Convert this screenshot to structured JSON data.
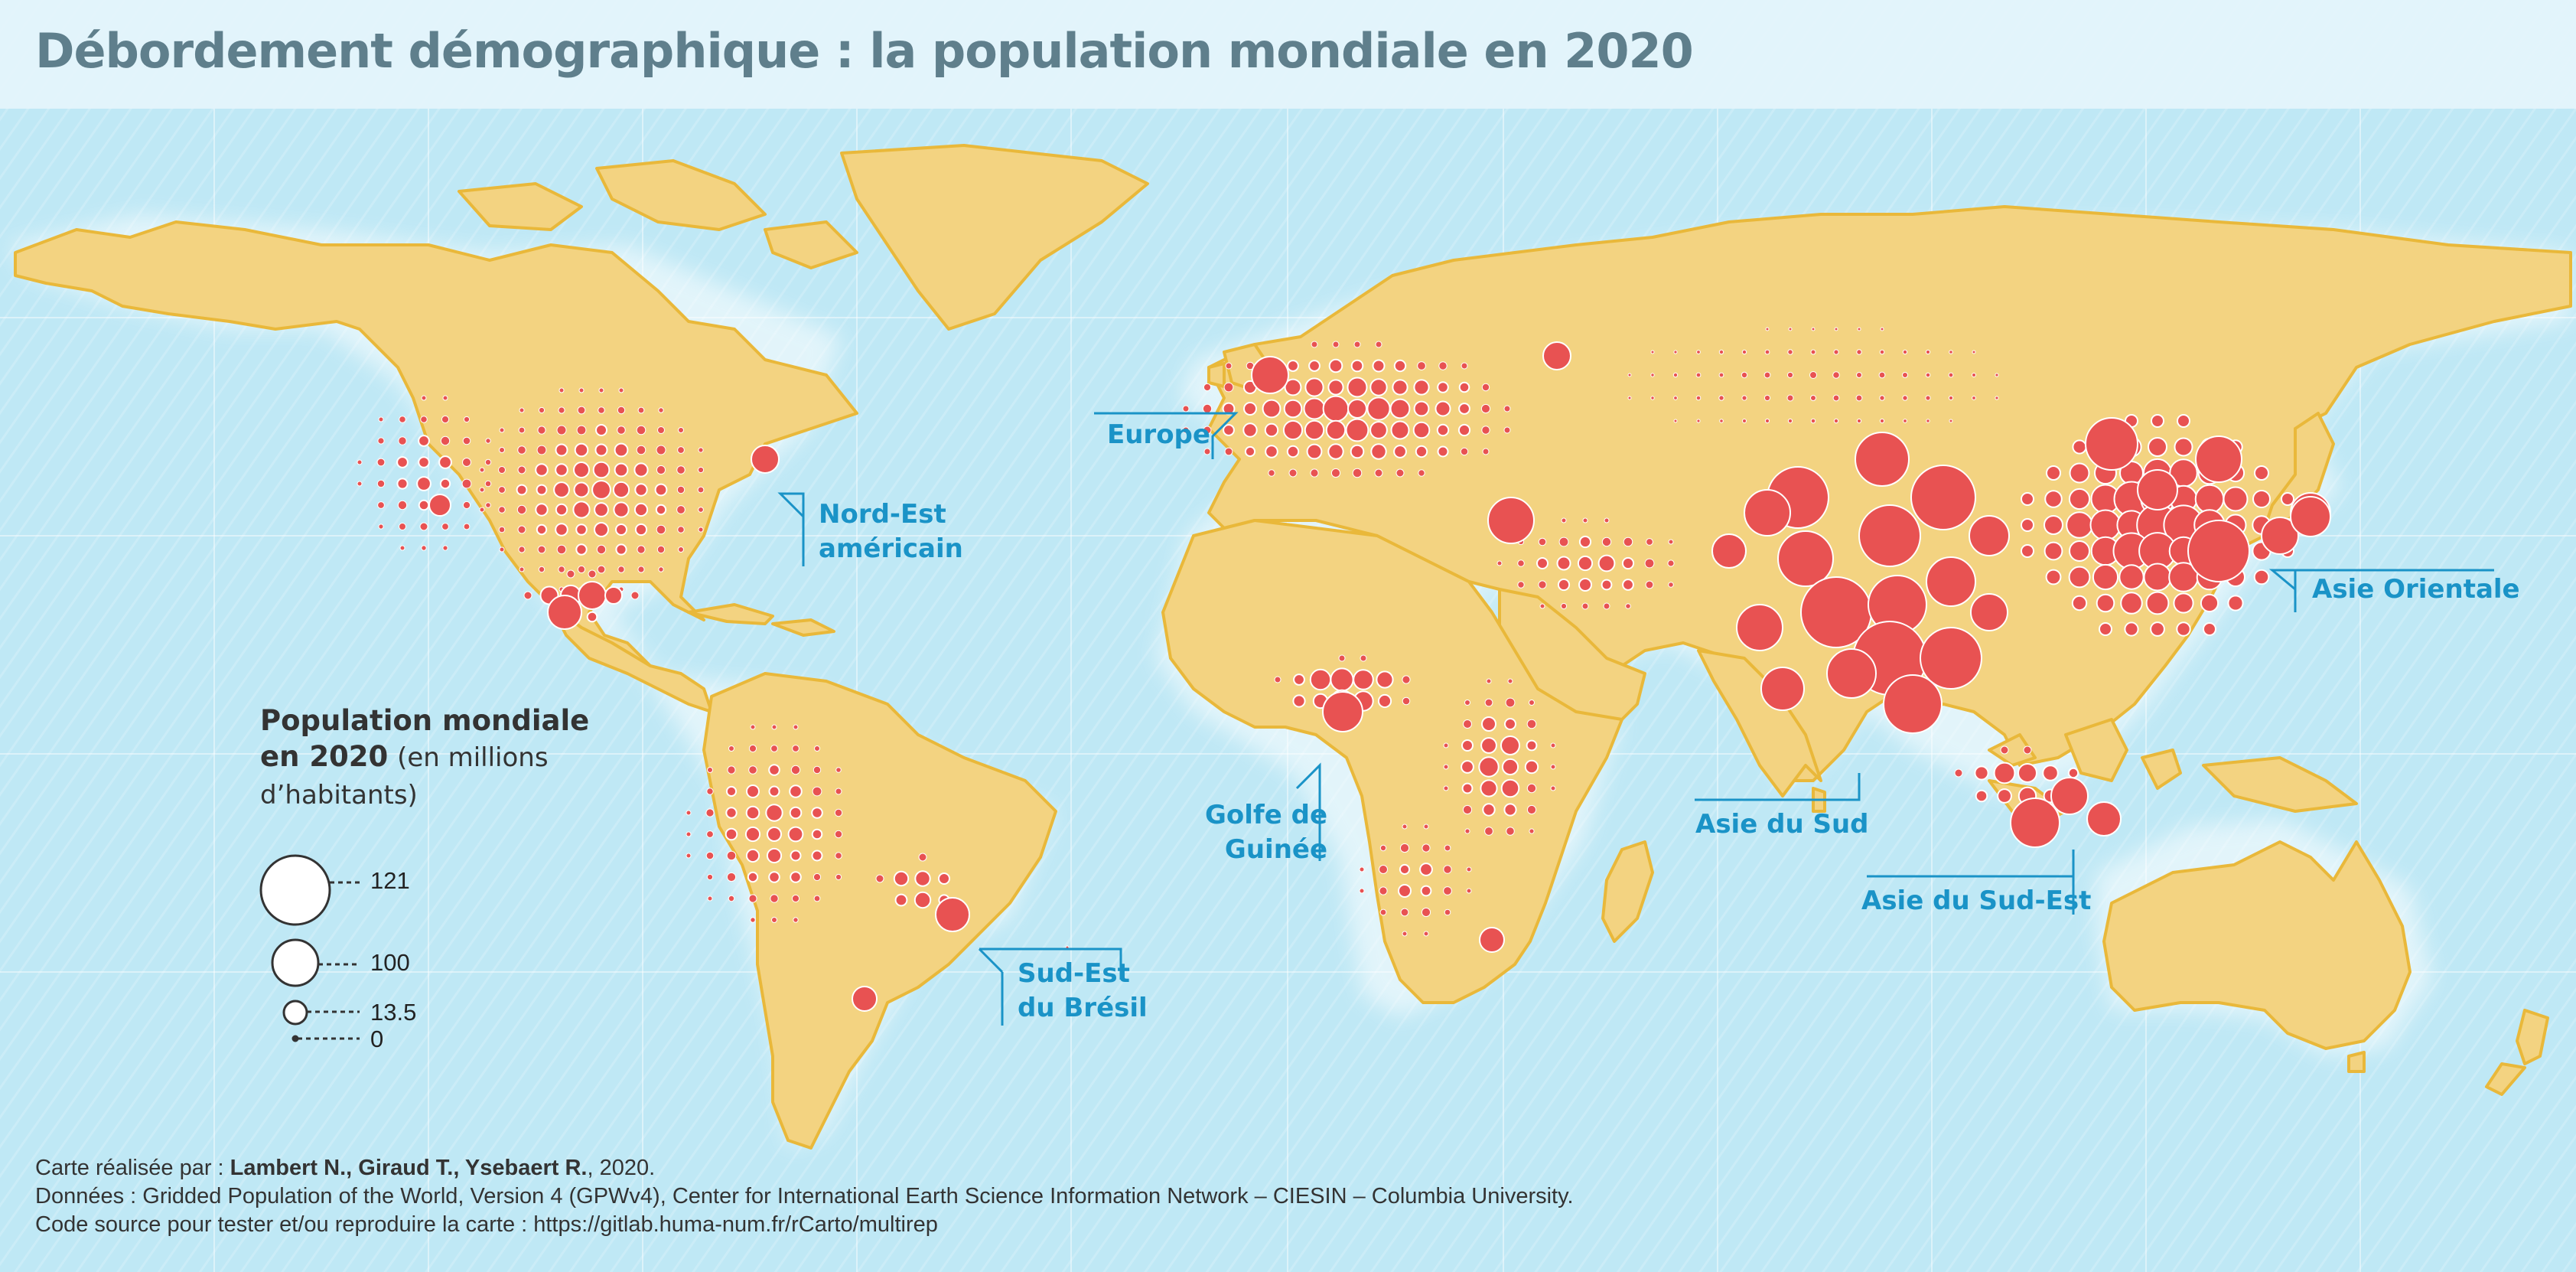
{
  "title": "Débordement démographique : la population mondiale en 2020",
  "regions": [
    {
      "key": "europe",
      "lines": [
        "Europe"
      ]
    },
    {
      "key": "nord_est_americain",
      "lines": [
        "Nord-Est",
        "américain"
      ]
    },
    {
      "key": "asie_orientale",
      "lines": [
        "Asie Orientale"
      ]
    },
    {
      "key": "golfe_de_guinee",
      "lines": [
        "Golfe de",
        "Guinée"
      ]
    },
    {
      "key": "asie_du_sud",
      "lines": [
        "Asie du Sud"
      ]
    },
    {
      "key": "asie_du_sud_est",
      "lines": [
        "Asie du Sud-Est"
      ]
    },
    {
      "key": "sud_est_du_bresil",
      "lines": [
        "Sud-Est",
        "du Brésil"
      ]
    }
  ],
  "legend": {
    "title_bold_1": "Population mondiale",
    "title_bold_2": "en 2020",
    "title_rest_1": "(en millions",
    "title_rest_2": "d’habitants)",
    "values": [
      "121",
      "100",
      "13.5",
      "0"
    ]
  },
  "credits": {
    "line1_prefix": "Carte réalisée par : ",
    "line1_authors": "Lambert N., Giraud T., Ysebaert R.",
    "line1_suffix": ", 2020.",
    "line2": "Données : Gridded Population of the World, Version 4 (GPWv4), Center for International Earth Science Information Network – CIESIN – Columbia University.",
    "line3": "Code source pour tester et/ou reproduire la carte : https://gitlab.huma-num.fr/rCarto/multirep"
  },
  "colors": {
    "ocean": "#bfe8f5",
    "land": "#f3d381",
    "land_edge": "#e9b83a",
    "circle": "#e85252",
    "circle_stroke": "#ffffff",
    "label": "#1a93c7",
    "title": "#5f7f8c"
  },
  "icons": {
    "map": "world-map",
    "legend_symbol": "proportional-circle"
  }
}
